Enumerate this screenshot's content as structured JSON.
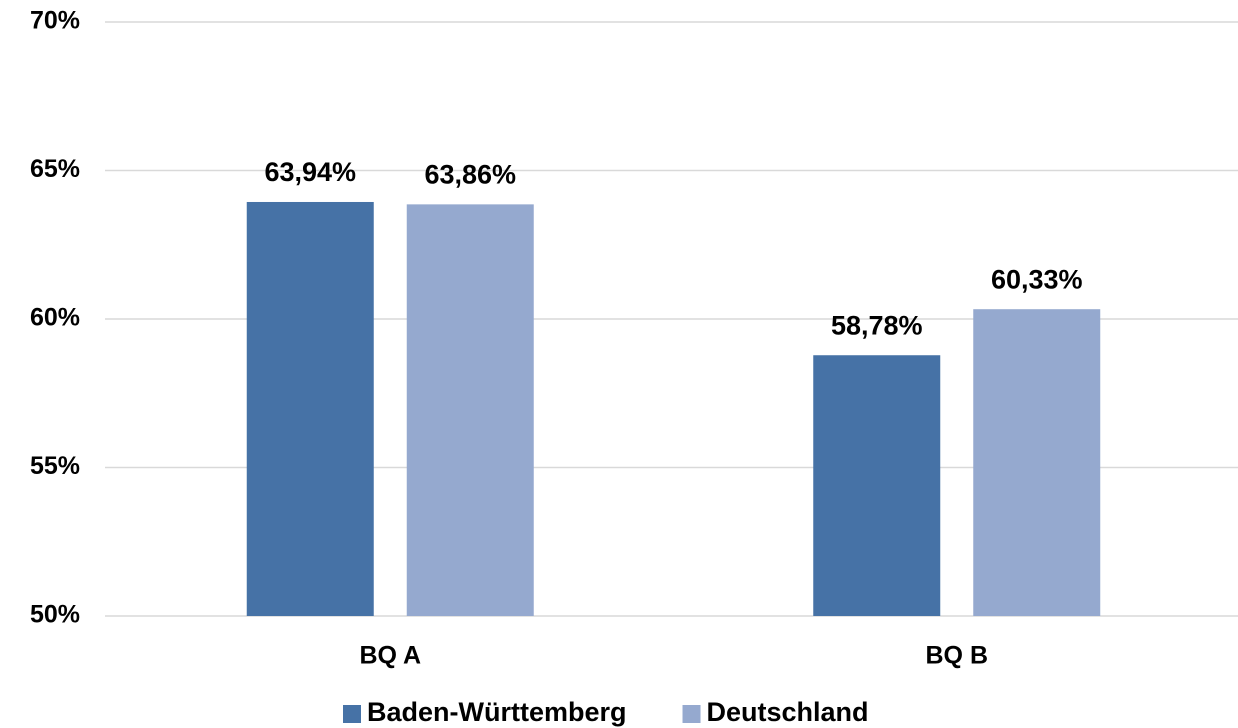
{
  "chart_data": {
    "type": "bar",
    "categories": [
      "BQ A",
      "BQ B"
    ],
    "series": [
      {
        "name": "Baden-Württemberg",
        "color": "#4672a6",
        "values": [
          63.94,
          58.78
        ],
        "value_labels": [
          "63,94%",
          "58,78%"
        ]
      },
      {
        "name": "Deutschland",
        "color": "#95a9cf",
        "values": [
          63.86,
          60.33
        ],
        "value_labels": [
          "63,86%",
          "60,33%"
        ]
      }
    ],
    "ylim": [
      50,
      70
    ],
    "yticks": [
      {
        "value": 50,
        "label": "50%"
      },
      {
        "value": 55,
        "label": "55%"
      },
      {
        "value": 60,
        "label": "60%"
      },
      {
        "value": 65,
        "label": "65%"
      },
      {
        "value": 70,
        "label": "70%"
      }
    ],
    "grid": true,
    "legend": "bottom"
  }
}
